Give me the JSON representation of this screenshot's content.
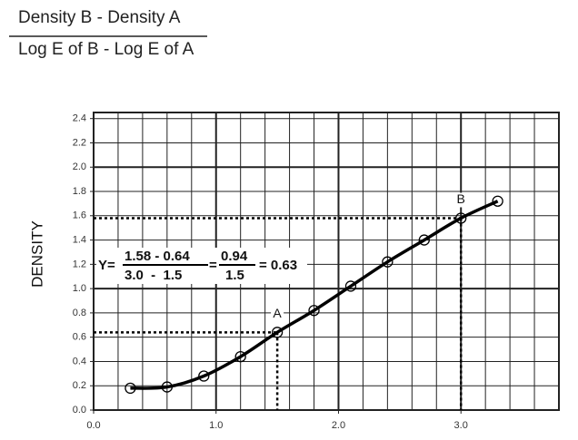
{
  "chart_data": {
    "type": "line",
    "header": {
      "numerator": "Density B - Density A",
      "denominator": "Log E of B - Log E of A"
    },
    "ylabel": "DENSITY",
    "x": [
      0.3,
      0.6,
      0.9,
      1.2,
      1.5,
      1.8,
      2.1,
      2.4,
      2.7,
      3.0,
      3.3
    ],
    "series": [
      {
        "color": "#000000",
        "values": [
          0.18,
          0.19,
          0.28,
          0.44,
          0.64,
          0.82,
          1.02,
          1.22,
          1.4,
          1.58,
          1.72
        ]
      }
    ],
    "xlim": [
      0,
      3.8
    ],
    "ylim": [
      0,
      2.45
    ],
    "xticks": [
      {
        "value": 0,
        "label": "0.0"
      },
      {
        "value": 1,
        "label": "1.0"
      },
      {
        "value": 2,
        "label": "2.0"
      },
      {
        "value": 3,
        "label": "3.0"
      }
    ],
    "yticks": [
      {
        "value": 0,
        "label": "0.0"
      },
      0.2,
      0.4,
      0.6,
      0.8,
      {
        "value": 1,
        "label": "1.0"
      },
      1.2,
      1.4,
      1.6,
      1.8,
      {
        "value": 2,
        "label": "2.0"
      },
      2.2,
      2.4
    ],
    "grid": true,
    "minor_step": 0.2,
    "annotations": [
      {
        "label": "A",
        "x": 1.5,
        "y": 0.64
      },
      {
        "label": "B",
        "x": 3.0,
        "y": 1.58
      }
    ],
    "formula": {
      "prefix": "Y=",
      "numerator": "1.58 - 0.64",
      "denominator": "3.0  -  1.5",
      "equals": "=",
      "numerator2": "0.94",
      "denominator2": "1.5",
      "result": "= 0.63"
    }
  }
}
